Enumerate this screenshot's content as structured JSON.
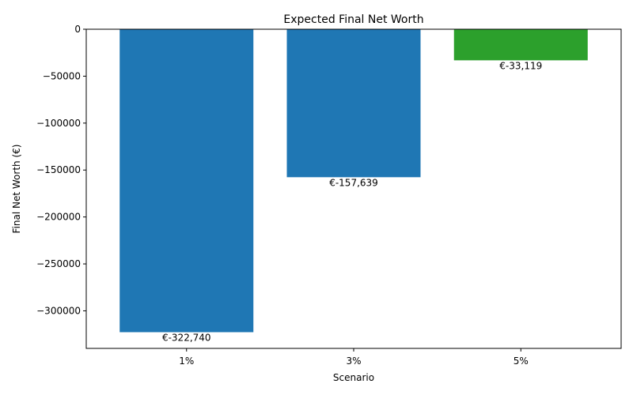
{
  "chart_data": {
    "type": "bar",
    "title": "Expected Final Net Worth",
    "xlabel": "Scenario",
    "ylabel": "Final Net Worth (€)",
    "categories": [
      "1%",
      "3%",
      "5%"
    ],
    "values": [
      -322740,
      -157639,
      -33119
    ],
    "bar_labels": [
      "€-322,740",
      "€-157,639",
      "€-33,119"
    ],
    "bar_colors": [
      "#1f77b4",
      "#1f77b4",
      "#2ca02c"
    ],
    "ylim": [
      -340000,
      0
    ],
    "yticks": [
      0,
      -50000,
      -100000,
      -150000,
      -200000,
      -250000,
      -300000
    ],
    "ytick_labels": [
      "0",
      "−50000",
      "−100000",
      "−150000",
      "−200000",
      "−250000",
      "−300000"
    ],
    "grid": false,
    "legend": "none"
  }
}
